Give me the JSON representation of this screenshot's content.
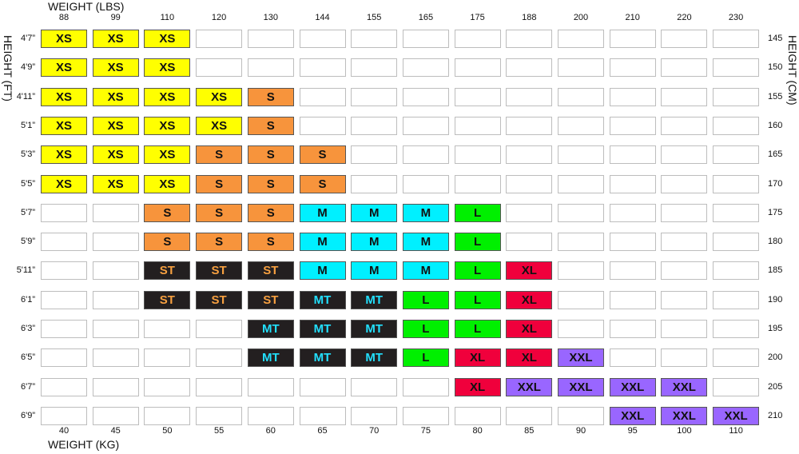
{
  "chart_data": {
    "type": "table",
    "top_axis_title": "WEIGHT (LBS)",
    "bottom_axis_title": "WEIGHT (KG)",
    "left_axis_title": "HEIGHT (FT)",
    "right_axis_title": "HEIGHT (CM)",
    "weight_lbs": [
      "88",
      "99",
      "110",
      "120",
      "130",
      "144",
      "155",
      "165",
      "175",
      "188",
      "200",
      "210",
      "220",
      "230"
    ],
    "weight_kg": [
      "40",
      "45",
      "50",
      "55",
      "60",
      "65",
      "70",
      "75",
      "80",
      "85",
      "90",
      "95",
      "100",
      "110"
    ],
    "height_ft": [
      "4'7”",
      "4'9”",
      "4'11”",
      "5'1”",
      "5'3”",
      "5'5”",
      "5'7”",
      "5'9”",
      "5'11”",
      "6'1”",
      "6'3”",
      "6'5”",
      "6'7”",
      "6'9”"
    ],
    "height_cm": [
      "145",
      "150",
      "155",
      "160",
      "165",
      "170",
      "175",
      "180",
      "185",
      "190",
      "195",
      "200",
      "205",
      "210"
    ],
    "sizes": [
      [
        "XS",
        "XS",
        "XS",
        "",
        "",
        "",
        "",
        "",
        "",
        "",
        "",
        "",
        "",
        ""
      ],
      [
        "XS",
        "XS",
        "XS",
        "",
        "",
        "",
        "",
        "",
        "",
        "",
        "",
        "",
        "",
        ""
      ],
      [
        "XS",
        "XS",
        "XS",
        "XS",
        "S",
        "",
        "",
        "",
        "",
        "",
        "",
        "",
        "",
        ""
      ],
      [
        "XS",
        "XS",
        "XS",
        "XS",
        "S",
        "",
        "",
        "",
        "",
        "",
        "",
        "",
        "",
        ""
      ],
      [
        "XS",
        "XS",
        "XS",
        "S",
        "S",
        "S",
        "",
        "",
        "",
        "",
        "",
        "",
        "",
        ""
      ],
      [
        "XS",
        "XS",
        "XS",
        "S",
        "S",
        "S",
        "",
        "",
        "",
        "",
        "",
        "",
        "",
        ""
      ],
      [
        "",
        "",
        "S",
        "S",
        "S",
        "M",
        "M",
        "M",
        "L",
        "",
        "",
        "",
        "",
        ""
      ],
      [
        "",
        "",
        "S",
        "S",
        "S",
        "M",
        "M",
        "M",
        "L",
        "",
        "",
        "",
        "",
        ""
      ],
      [
        "",
        "",
        "ST",
        "ST",
        "ST",
        "M",
        "M",
        "M",
        "L",
        "XL",
        "",
        "",
        "",
        ""
      ],
      [
        "",
        "",
        "ST",
        "ST",
        "ST",
        "MT",
        "MT",
        "L",
        "L",
        "XL",
        "",
        "",
        "",
        ""
      ],
      [
        "",
        "",
        "",
        "",
        "MT",
        "MT",
        "MT",
        "L",
        "L",
        "XL",
        "",
        "",
        "",
        ""
      ],
      [
        "",
        "",
        "",
        "",
        "MT",
        "MT",
        "MT",
        "L",
        "XL",
        "XL",
        "XXL",
        "",
        "",
        ""
      ],
      [
        "",
        "",
        "",
        "",
        "",
        "",
        "",
        "",
        "XL",
        "XXL",
        "XXL",
        "XXL",
        "XXL",
        ""
      ],
      [
        "",
        "",
        "",
        "",
        "",
        "",
        "",
        "",
        "",
        "",
        "",
        "XXL",
        "XXL",
        "XXL"
      ]
    ],
    "size_colors": {
      "XS": {
        "bg": "#ffff00",
        "fg": "#111111"
      },
      "S": {
        "bg": "#f7943c",
        "fg": "#111111"
      },
      "M": {
        "bg": "#00f0ff",
        "fg": "#111111"
      },
      "L": {
        "bg": "#00f000",
        "fg": "#111111"
      },
      "XL": {
        "bg": "#f0003c",
        "fg": "#111111"
      },
      "XXL": {
        "bg": "#9966ff",
        "fg": "#111111"
      },
      "ST": {
        "bg": "#231f20",
        "fg": "#f7a040"
      },
      "MT": {
        "bg": "#231f20",
        "fg": "#22e0ff"
      }
    }
  }
}
